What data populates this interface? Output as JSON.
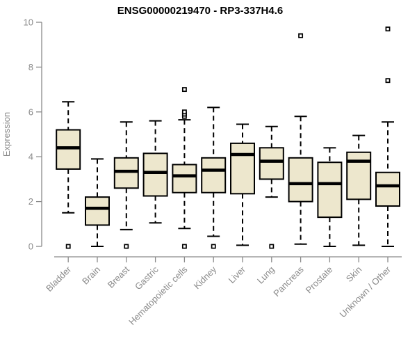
{
  "figure": {
    "title": "ENSG00000219470 - RP3-337H4.6"
  },
  "colors": {
    "background": "#ffffff",
    "box_fill": "#ede7cd",
    "box_border": "#000000",
    "median_line": "#000000",
    "whisker": "#000000",
    "outlier_fill": "#ffffff",
    "outlier_stroke": "#000000",
    "axis": "#8a8a8a",
    "tick_text": "#8a8a8a",
    "title_text": "#000000"
  },
  "chart_data": {
    "type": "boxplot",
    "title": "ENSG00000219470 - RP3-337H4.6",
    "xlabel": "",
    "ylabel": "Expression",
    "ylim": [
      0,
      10
    ],
    "yticks": [
      0,
      2,
      4,
      6,
      8,
      10
    ],
    "grid": false,
    "legend": "none",
    "x_tick_rotation_degrees": 45,
    "whisker_style": "dashed",
    "outlier_marker": "open-square",
    "categories": [
      "Bladder",
      "Brain",
      "Breast",
      "Gastric",
      "Hematopoietic cells",
      "Kidney",
      "Liver",
      "Lung",
      "Pancreas",
      "Prostate",
      "Skin",
      "Unknown / Other"
    ],
    "series": [
      {
        "name": "Bladder",
        "whisker_low": 1.5,
        "q1": 3.45,
        "median": 4.4,
        "q3": 5.2,
        "whisker_high": 6.45,
        "outliers": [
          0
        ]
      },
      {
        "name": "Brain",
        "whisker_low": 0.0,
        "q1": 0.95,
        "median": 1.7,
        "q3": 2.2,
        "whisker_high": 3.9,
        "outliers": []
      },
      {
        "name": "Breast",
        "whisker_low": 0.75,
        "q1": 2.6,
        "median": 3.35,
        "q3": 3.95,
        "whisker_high": 5.55,
        "outliers": [
          0
        ]
      },
      {
        "name": "Gastric",
        "whisker_low": 1.05,
        "q1": 2.25,
        "median": 3.3,
        "q3": 4.15,
        "whisker_high": 5.6,
        "outliers": []
      },
      {
        "name": "Hematopoietic cells",
        "whisker_low": 0.8,
        "q1": 2.4,
        "median": 3.15,
        "q3": 3.65,
        "whisker_high": 5.65,
        "outliers": [
          0,
          5.8,
          5.9,
          6.0,
          7.0
        ]
      },
      {
        "name": "Kidney",
        "whisker_low": 0.45,
        "q1": 2.4,
        "median": 3.4,
        "q3": 3.95,
        "whisker_high": 6.2,
        "outliers": [
          0
        ]
      },
      {
        "name": "Liver",
        "whisker_low": 0.05,
        "q1": 2.35,
        "median": 4.1,
        "q3": 4.6,
        "whisker_high": 5.45,
        "outliers": []
      },
      {
        "name": "Lung",
        "whisker_low": 2.2,
        "q1": 3.0,
        "median": 3.8,
        "q3": 4.4,
        "whisker_high": 5.35,
        "outliers": [
          0
        ]
      },
      {
        "name": "Pancreas",
        "whisker_low": 0.1,
        "q1": 2.0,
        "median": 2.8,
        "q3": 3.95,
        "whisker_high": 5.8,
        "outliers": [
          9.4
        ]
      },
      {
        "name": "Prostate",
        "whisker_low": 0.0,
        "q1": 1.3,
        "median": 2.8,
        "q3": 3.75,
        "whisker_high": 4.4,
        "outliers": []
      },
      {
        "name": "Skin",
        "whisker_low": 0.05,
        "q1": 2.1,
        "median": 3.8,
        "q3": 4.2,
        "whisker_high": 4.95,
        "outliers": []
      },
      {
        "name": "Unknown / Other",
        "whisker_low": 0.0,
        "q1": 1.8,
        "median": 2.7,
        "q3": 3.3,
        "whisker_high": 5.55,
        "outliers": [
          7.4,
          9.7
        ]
      }
    ]
  }
}
